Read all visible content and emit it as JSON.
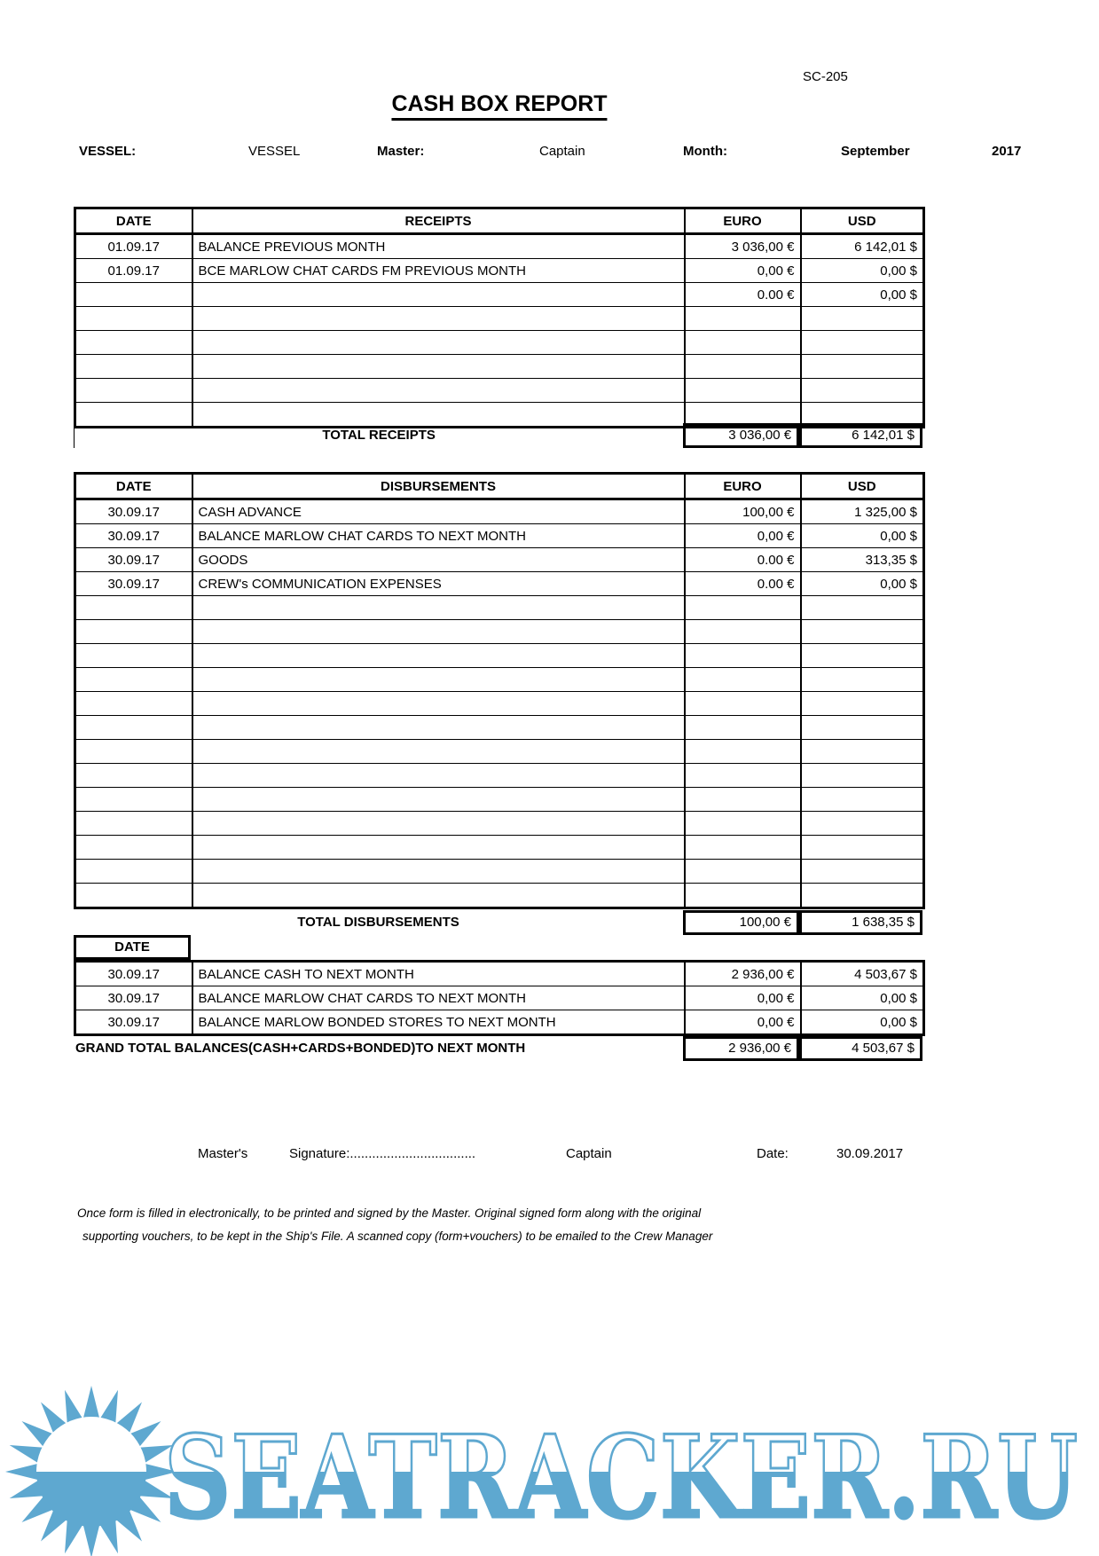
{
  "page": {
    "form_code": "SC-205",
    "title": "CASH BOX REPORT"
  },
  "header": {
    "vessel_label": "VESSEL:",
    "vessel_value": "VESSEL",
    "master_label": "Master:",
    "master_value": "Captain",
    "month_label": "Month:",
    "month_value": "September",
    "year": "2017"
  },
  "receipts": {
    "columns": {
      "date": "DATE",
      "description": "RECEIPTS",
      "euro": "EURO",
      "usd": "USD"
    },
    "rows": [
      {
        "date": "01.09.17",
        "description": "BALANCE PREVIOUS MONTH",
        "euro": "3 036,00 €",
        "usd": "6 142,01 $"
      },
      {
        "date": "01.09.17",
        "description": "BCE MARLOW CHAT CARDS FM PREVIOUS MONTH",
        "euro": "0,00 €",
        "usd": "0,00 $"
      },
      {
        "date": "",
        "description": "",
        "euro": "0.00 €",
        "usd": "0,00 $"
      },
      {
        "date": "",
        "description": "",
        "euro": "",
        "usd": ""
      },
      {
        "date": "",
        "description": "",
        "euro": "",
        "usd": ""
      },
      {
        "date": "",
        "description": "",
        "euro": "",
        "usd": ""
      },
      {
        "date": "",
        "description": "",
        "euro": "",
        "usd": ""
      },
      {
        "date": "",
        "description": "",
        "euro": "",
        "usd": ""
      }
    ],
    "total_label": "TOTAL RECEIPTS",
    "total_euro": "3 036,00 €",
    "total_usd": "6 142,01 $"
  },
  "disbursements": {
    "columns": {
      "date": "DATE",
      "description": "DISBURSEMENTS",
      "euro": "EURO",
      "usd": "USD"
    },
    "rows": [
      {
        "date": "30.09.17",
        "description": "CASH ADVANCE",
        "euro": "100,00 €",
        "usd": "1 325,00 $"
      },
      {
        "date": "30.09.17",
        "description": "BALANCE MARLOW CHAT CARDS TO NEXT MONTH",
        "euro": "0,00 €",
        "usd": "0,00 $"
      },
      {
        "date": "30.09.17",
        "description": "GOODS",
        "euro": "0.00 €",
        "usd": "313,35 $"
      },
      {
        "date": "30.09.17",
        "description": "CREW's  COMMUNICATION EXPENSES",
        "euro": "0.00 €",
        "usd": "0,00 $"
      },
      {
        "date": "",
        "description": "",
        "euro": "",
        "usd": ""
      },
      {
        "date": "",
        "description": "",
        "euro": "",
        "usd": ""
      },
      {
        "date": "",
        "description": "",
        "euro": "",
        "usd": ""
      },
      {
        "date": "",
        "description": "",
        "euro": "",
        "usd": ""
      },
      {
        "date": "",
        "description": "",
        "euro": "",
        "usd": ""
      },
      {
        "date": "",
        "description": "",
        "euro": "",
        "usd": ""
      },
      {
        "date": "",
        "description": "",
        "euro": "",
        "usd": ""
      },
      {
        "date": "",
        "description": "",
        "euro": "",
        "usd": ""
      },
      {
        "date": "",
        "description": "",
        "euro": "",
        "usd": ""
      },
      {
        "date": "",
        "description": "",
        "euro": "",
        "usd": ""
      },
      {
        "date": "",
        "description": "",
        "euro": "",
        "usd": ""
      },
      {
        "date": "",
        "description": "",
        "euro": "",
        "usd": ""
      },
      {
        "date": "",
        "description": "",
        "euro": "",
        "usd": ""
      }
    ],
    "total_label": "TOTAL DISBURSEMENTS",
    "total_euro": "100,00 €",
    "total_usd": "1 638,35 $"
  },
  "balances": {
    "date_header": "DATE",
    "rows": [
      {
        "date": "30.09.17",
        "description": "BALANCE CASH TO NEXT MONTH",
        "euro": "2 936,00 €",
        "usd": "4 503,67 $"
      },
      {
        "date": "30.09.17",
        "description": "BALANCE MARLOW CHAT CARDS TO NEXT MONTH",
        "euro": "0,00 €",
        "usd": "0,00 $"
      },
      {
        "date": "30.09.17",
        "description": "BALANCE MARLOW BONDED STORES TO NEXT MONTH",
        "euro": "0,00 €",
        "usd": "0,00 $"
      }
    ],
    "grand_total_label": "GRAND TOTAL BALANCES(CASH+CARDS+BONDED)TO NEXT MONTH",
    "grand_total_euro": "2 936,00 €",
    "grand_total_usd": "4 503,67 $"
  },
  "signature": {
    "masters_label": "Master's",
    "signature_label": "Signature:..................................",
    "signer": "Captain",
    "date_label": "Date:",
    "date_value": "30.09.2017"
  },
  "footnote": {
    "line1": "Once form is filled in electronically, to be printed and signed by the Master.  Original signed form along with the original",
    "line2": "supporting vouchers, to be kept in the Ship's File.  A scanned copy (form+vouchers) to be emailed to the Crew Manager"
  },
  "watermark": {
    "text": "SEATRACKER.RU",
    "color": "#5ea8d0"
  }
}
